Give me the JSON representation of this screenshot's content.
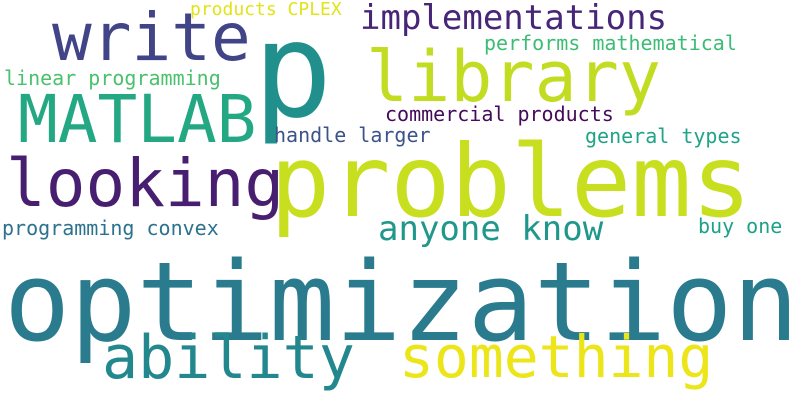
{
  "words": {
    "optimization": {
      "text": "optimization",
      "color": "#2a7b8e"
    },
    "problems": {
      "text": "problems",
      "color": "#c8df1f"
    },
    "library": {
      "text": "library",
      "color": "#c2dc22"
    },
    "p": {
      "text": "p",
      "color": "#21908d"
    },
    "write": {
      "text": "write",
      "color": "#414487"
    },
    "matlab": {
      "text": "MATLAB",
      "color": "#23a883"
    },
    "looking": {
      "text": "looking",
      "color": "#481f70"
    },
    "ability": {
      "text": "ability",
      "color": "#22888e"
    },
    "something": {
      "text": "something",
      "color": "#ebe51a"
    },
    "implementations": {
      "text": "implementations",
      "color": "#482677"
    },
    "anyone_know": {
      "text": "anyone know",
      "color": "#1f978b"
    },
    "performs_mathematical": {
      "text": "performs mathematical",
      "color": "#3dbc74"
    },
    "linear_programming": {
      "text": "linear programming",
      "color": "#4ac16d"
    },
    "commercial_products": {
      "text": "commercial products",
      "color": "#450a59"
    },
    "handle_larger": {
      "text": "handle larger",
      "color": "#3b528b"
    },
    "general_types": {
      "text": "general types",
      "color": "#20a387"
    },
    "programming_convex": {
      "text": "programming convex",
      "color": "#2c728e"
    },
    "buy_one": {
      "text": "buy one",
      "color": "#1fa088"
    },
    "products_cplex": {
      "text": "products CPLEX",
      "color": "#e1e418"
    }
  }
}
